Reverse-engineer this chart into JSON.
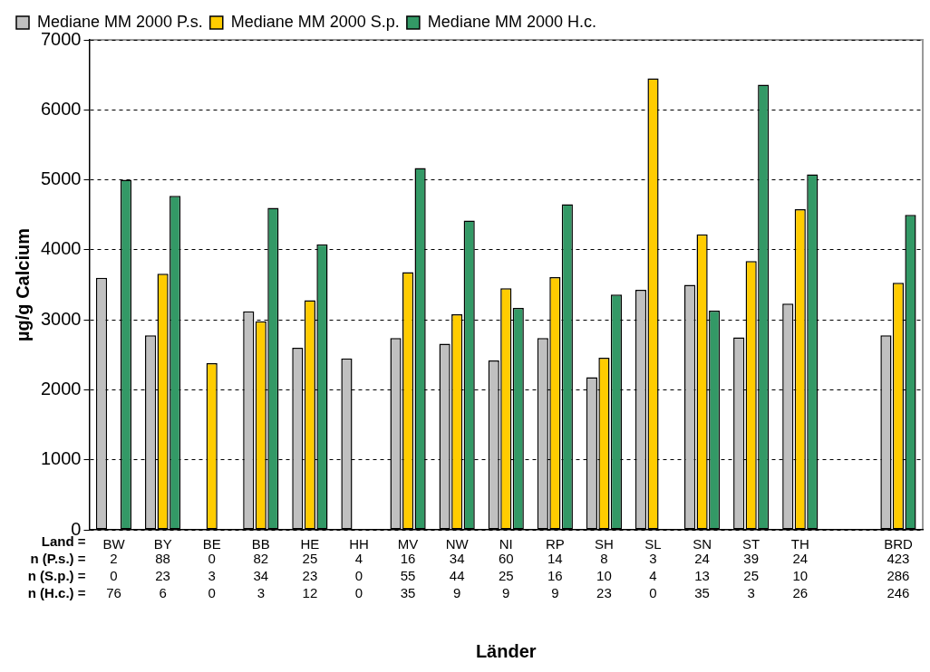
{
  "chart_data": {
    "type": "bar",
    "xlabel": "Länder",
    "ylabel": "µg/g Calcium",
    "categories": [
      "BW",
      "BY",
      "BE",
      "BB",
      "HE",
      "HH",
      "MV",
      "NW",
      "NI",
      "RP",
      "SH",
      "SL",
      "SN",
      "ST",
      "TH",
      null,
      "BRD"
    ],
    "series": [
      {
        "name": "Mediane MM 2000 P.s.",
        "color": "#c0c0c0",
        "values": [
          3600,
          2780,
          null,
          3120,
          2600,
          2450,
          2740,
          2660,
          2420,
          2740,
          2180,
          3430,
          3500,
          2750,
          3230,
          null,
          2780
        ]
      },
      {
        "name": "Mediane MM 2000 S.p.",
        "color": "#ffcc00",
        "values": [
          null,
          3660,
          2380,
          2980,
          3280,
          null,
          3680,
          3080,
          3450,
          3610,
          2460,
          6450,
          4220,
          3840,
          4580,
          null,
          3530
        ]
      },
      {
        "name": "Mediane MM 2000 H.c.",
        "color": "#339966",
        "values": [
          5000,
          4770,
          null,
          4600,
          4080,
          null,
          5170,
          4420,
          3170,
          4650,
          3360,
          null,
          3130,
          6360,
          5080,
          null,
          4500
        ]
      }
    ],
    "ylim": [
      0,
      7000
    ],
    "yticks": [
      0,
      1000,
      2000,
      3000,
      4000,
      5000,
      6000,
      7000
    ],
    "grid": "y",
    "legend": "top left",
    "annotations": [
      "Land =",
      "n (P.s.) =",
      "n (S.p.) =",
      "n (H.c.) =",
      "2",
      "88",
      "0",
      "82",
      "25",
      "4",
      "16",
      "34",
      "60",
      "14",
      "8",
      "3",
      "24",
      "39",
      "24",
      "423",
      "0",
      "23",
      "3",
      "34",
      "23",
      "0",
      "55",
      "44",
      "25",
      "16",
      "10",
      "4",
      "13",
      "25",
      "10",
      "286",
      "76",
      "6",
      "0",
      "3",
      "12",
      "0",
      "35",
      "9",
      "9",
      "9",
      "23",
      "0",
      "35",
      "3",
      "26",
      "246"
    ]
  }
}
